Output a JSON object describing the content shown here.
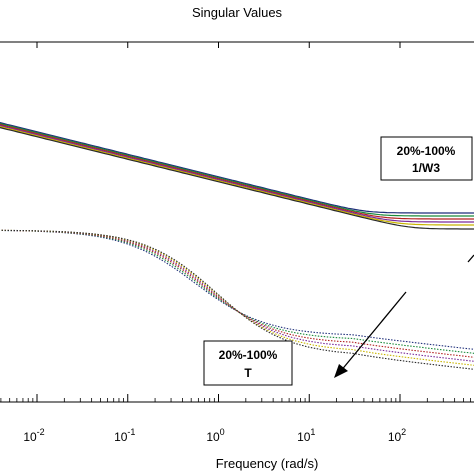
{
  "chart_data": {
    "type": "line",
    "title": "Singular Values",
    "xlabel": "Frequency (rad/s)",
    "ylabel": "",
    "x_scale": "log",
    "xlim": [
      0.003,
      800
    ],
    "x_ticks": [
      {
        "base": "10",
        "exp": "-2",
        "value": 0.01
      },
      {
        "base": "10",
        "exp": "-1",
        "value": 0.1
      },
      {
        "base": "10",
        "exp": "0",
        "value": 1
      },
      {
        "base": "10",
        "exp": "1",
        "value": 10
      },
      {
        "base": "10",
        "exp": "2",
        "value": 100
      }
    ],
    "grid": false,
    "annotations": [
      {
        "lines": [
          "20%-100%",
          "1/W3"
        ]
      },
      {
        "lines": [
          "20%-100%",
          "T"
        ]
      }
    ],
    "groups": {
      "w3_inverse": {
        "style": "solid",
        "low_freq_level": [
          120,
          125
        ],
        "corner_freq": 25,
        "slope_per_decade": -22.5,
        "floor_levels": [
          213,
          216,
          219,
          222,
          225,
          229
        ]
      },
      "T": {
        "style": "dotted",
        "low_freq_level": 230,
        "corner_freq": [
          0.55,
          0.95
        ],
        "high_freq_levels": [
          336,
          340,
          344,
          348,
          352,
          356
        ]
      }
    },
    "colors": [
      "#1f2f7a",
      "#1a8a3a",
      "#b22222",
      "#7a2a9a",
      "#c8b400",
      "#2a2a2a"
    ]
  }
}
